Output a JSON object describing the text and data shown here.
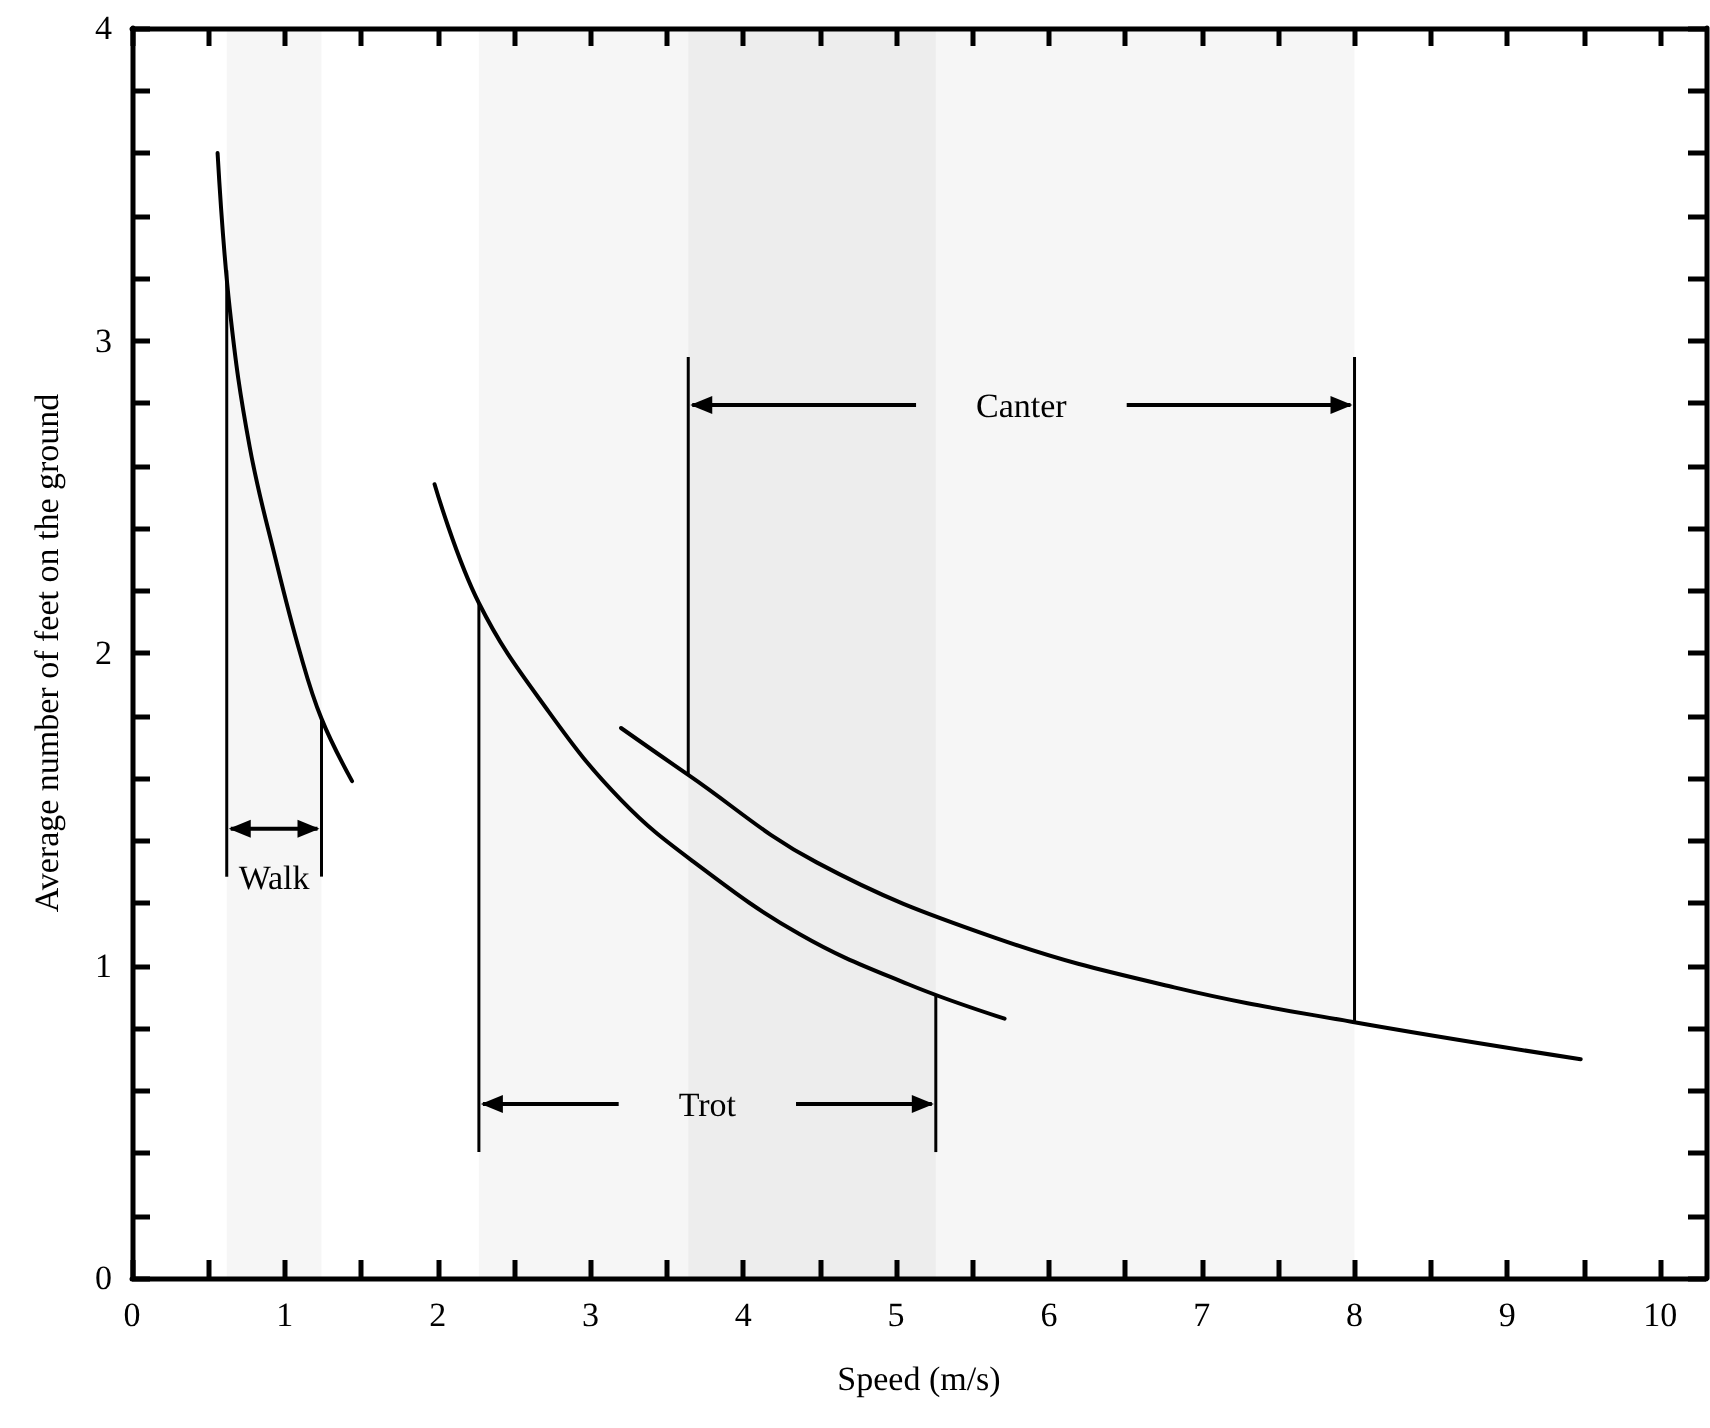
{
  "chart_data": {
    "type": "line",
    "xlabel": "Speed (m/s)",
    "ylabel": "Average number of feet on the ground",
    "xlim": [
      0,
      10.3
    ],
    "ylim": [
      0,
      4
    ],
    "xticks": [
      0,
      {
        "value": 0.5,
        "label": null
      },
      1,
      {
        "value": 1.5,
        "label": null
      },
      2,
      {
        "value": 2.5,
        "label": null
      },
      3,
      {
        "value": 3.5,
        "label": null
      },
      4,
      {
        "value": 4.5,
        "label": null
      },
      5,
      {
        "value": 5.5,
        "label": null
      },
      6,
      {
        "value": 6.5,
        "label": null
      },
      7,
      {
        "value": 7.5,
        "label": null
      },
      8,
      {
        "value": 8.5,
        "label": null
      },
      9,
      {
        "value": 9.5,
        "label": null
      },
      10
    ],
    "yticks": [
      0,
      {
        "value": 0.2,
        "label": null
      },
      {
        "value": 0.4,
        "label": null
      },
      {
        "value": 0.6,
        "label": null
      },
      {
        "value": 0.8,
        "label": null
      },
      1,
      {
        "value": 1.2,
        "label": null
      },
      {
        "value": 1.4,
        "label": null
      },
      {
        "value": 1.6,
        "label": null
      },
      {
        "value": 1.8,
        "label": null
      },
      2,
      {
        "value": 2.2,
        "label": null
      },
      {
        "value": 2.4,
        "label": null
      },
      {
        "value": 2.6,
        "label": null
      },
      {
        "value": 2.8,
        "label": null
      },
      3,
      {
        "value": 3.2,
        "label": null
      },
      {
        "value": 3.4,
        "label": null
      },
      {
        "value": 3.6,
        "label": null
      },
      {
        "value": 3.8,
        "label": null
      },
      4
    ],
    "series": [
      {
        "color": "#000000",
        "x": [
          0.56,
          0.64,
          0.77,
          0.94,
          1.1,
          1.24,
          1.44
        ],
        "values": [
          3.6,
          3.1,
          2.66,
          2.3,
          2.0,
          1.79,
          1.59
        ]
      },
      {
        "color": "#000000",
        "x": [
          1.98,
          2.27,
          2.73,
          3.2,
          3.68,
          4.37,
          5.08,
          5.71
        ],
        "values": [
          2.54,
          2.16,
          1.81,
          1.53,
          1.33,
          1.1,
          0.94,
          0.83
        ]
      },
      {
        "color": "#000000",
        "x": [
          3.2,
          3.64,
          4.48,
          5.64,
          6.82,
          7.98,
          9.48
        ],
        "values": [
          1.76,
          1.61,
          1.33,
          1.09,
          0.93,
          0.82,
          0.7
        ]
      }
    ],
    "bands": [
      {
        "axis": "x",
        "from": 0.62,
        "to": 1.24,
        "label": "Walk"
      },
      {
        "axis": "x",
        "from": 2.27,
        "to": 5.26,
        "label": "Trot"
      },
      {
        "axis": "x",
        "from": 3.64,
        "to": 8.0,
        "label": "Canter"
      }
    ],
    "grid": false,
    "marker": "none",
    "line_style": "solid"
  }
}
